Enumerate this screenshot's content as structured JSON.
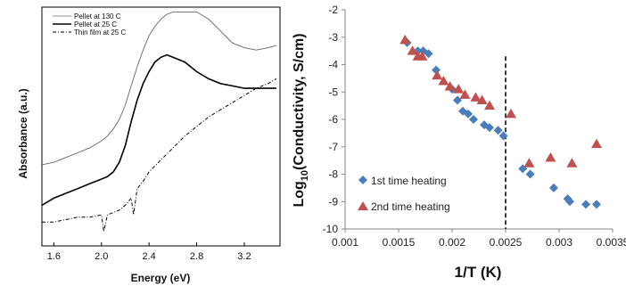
{
  "chart_data": [
    {
      "type": "line",
      "xlabel": "Energy (eV)",
      "ylabel": "Absorbance (a.u.)",
      "xlim": [
        1.5,
        3.5
      ],
      "x_ticks": [
        "1.6",
        "2.0",
        "2.4",
        "2.8",
        "3.2"
      ],
      "x_tick_values": [
        1.6,
        2.0,
        2.4,
        2.8,
        3.2
      ],
      "y_ticks_shown": false,
      "legend_position": "top-left",
      "series": [
        {
          "name": "Pellet at 130 C",
          "style": "thin-solid",
          "color": "#666666",
          "x": [
            1.5,
            1.6,
            1.7,
            1.8,
            1.9,
            2.0,
            2.05,
            2.1,
            2.15,
            2.2,
            2.25,
            2.3,
            2.35,
            2.4,
            2.45,
            2.5,
            2.55,
            2.6,
            2.7,
            2.8,
            2.9,
            3.0,
            3.1,
            3.2,
            3.3,
            3.4,
            3.47
          ],
          "y": [
            0.34,
            0.35,
            0.37,
            0.39,
            0.41,
            0.44,
            0.46,
            0.49,
            0.53,
            0.59,
            0.67,
            0.75,
            0.82,
            0.88,
            0.92,
            0.95,
            0.97,
            0.98,
            0.98,
            0.98,
            0.95,
            0.9,
            0.85,
            0.83,
            0.82,
            0.83,
            0.84
          ]
        },
        {
          "name": "Pellet at 25 C",
          "style": "thick-solid",
          "color": "#000000",
          "x": [
            1.5,
            1.6,
            1.7,
            1.8,
            1.9,
            2.0,
            2.05,
            2.1,
            2.15,
            2.2,
            2.25,
            2.3,
            2.35,
            2.4,
            2.45,
            2.5,
            2.55,
            2.6,
            2.7,
            2.8,
            2.9,
            3.0,
            3.1,
            3.2,
            3.3,
            3.4,
            3.47
          ],
          "y": [
            0.17,
            0.2,
            0.22,
            0.24,
            0.26,
            0.28,
            0.29,
            0.31,
            0.35,
            0.42,
            0.52,
            0.61,
            0.68,
            0.73,
            0.77,
            0.79,
            0.8,
            0.79,
            0.77,
            0.73,
            0.7,
            0.68,
            0.67,
            0.66,
            0.66,
            0.66,
            0.66
          ]
        },
        {
          "name": "Thin film at 25 C",
          "style": "dash-dot",
          "color": "#000000",
          "x": [
            1.5,
            1.6,
            1.7,
            1.8,
            1.9,
            2.0,
            2.02,
            2.05,
            2.1,
            2.15,
            2.2,
            2.25,
            2.27,
            2.3,
            2.35,
            2.4,
            2.5,
            2.6,
            2.7,
            2.8,
            2.9,
            3.0,
            3.1,
            3.2,
            3.3,
            3.4,
            3.47
          ],
          "y": [
            0.1,
            0.1,
            0.11,
            0.12,
            0.12,
            0.13,
            0.06,
            0.13,
            0.14,
            0.15,
            0.17,
            0.2,
            0.13,
            0.24,
            0.27,
            0.31,
            0.36,
            0.41,
            0.46,
            0.5,
            0.54,
            0.57,
            0.6,
            0.63,
            0.66,
            0.68,
            0.7
          ]
        }
      ]
    },
    {
      "type": "scatter",
      "xlabel": "1/T (K)",
      "ylabel": "Log10(Conductivity, S/cm)",
      "ylabel_main": "Log",
      "ylabel_sub": "10",
      "ylabel_rest": "(Conductivity, S/cm)",
      "xlim": [
        0.001,
        0.0035
      ],
      "ylim": [
        -10,
        -2
      ],
      "x_ticks": [
        "0.001",
        "0.0015",
        "0.002",
        "0.0025",
        "0.003",
        "0.0035"
      ],
      "x_tick_values": [
        0.001,
        0.0015,
        0.002,
        0.0025,
        0.003,
        0.0035
      ],
      "y_ticks": [
        "-2",
        "-3",
        "-4",
        "-5",
        "-6",
        "-7",
        "-8",
        "-9",
        "-10"
      ],
      "y_tick_values": [
        -2,
        -3,
        -4,
        -5,
        -6,
        -7,
        -8,
        -9,
        -10
      ],
      "vline_x": 0.0025,
      "legend_position": "bottom-left",
      "series": [
        {
          "name": "1st time heating",
          "marker": "diamond",
          "color": "#4a7ebb",
          "x": [
            0.00158,
            0.00168,
            0.00173,
            0.00178,
            0.00185,
            0.002,
            0.00205,
            0.0021,
            0.00215,
            0.0022,
            0.0023,
            0.00235,
            0.00243,
            0.00248,
            0.00266,
            0.00273,
            0.00295,
            0.00308,
            0.0031,
            0.00325,
            0.00335
          ],
          "y": [
            -3.2,
            -3.5,
            -3.5,
            -3.6,
            -4.2,
            -4.9,
            -5.3,
            -5.7,
            -5.8,
            -6.0,
            -6.2,
            -6.3,
            -6.4,
            -6.6,
            -7.8,
            -8.0,
            -8.5,
            -8.9,
            -9.0,
            -9.1,
            -9.1
          ]
        },
        {
          "name": "2nd time heating",
          "marker": "triangle",
          "color": "#c0504d",
          "x": [
            0.00156,
            0.00163,
            0.00168,
            0.00172,
            0.00186,
            0.00192,
            0.00198,
            0.00206,
            0.00212,
            0.00222,
            0.00228,
            0.00235,
            0.00255,
            0.00272,
            0.00292,
            0.00312,
            0.00335
          ],
          "y": [
            -3.1,
            -3.5,
            -3.7,
            -3.7,
            -4.4,
            -4.6,
            -4.8,
            -4.9,
            -5.1,
            -5.2,
            -5.3,
            -5.5,
            -5.8,
            -7.6,
            -7.4,
            -7.6,
            -6.9
          ]
        }
      ]
    }
  ]
}
